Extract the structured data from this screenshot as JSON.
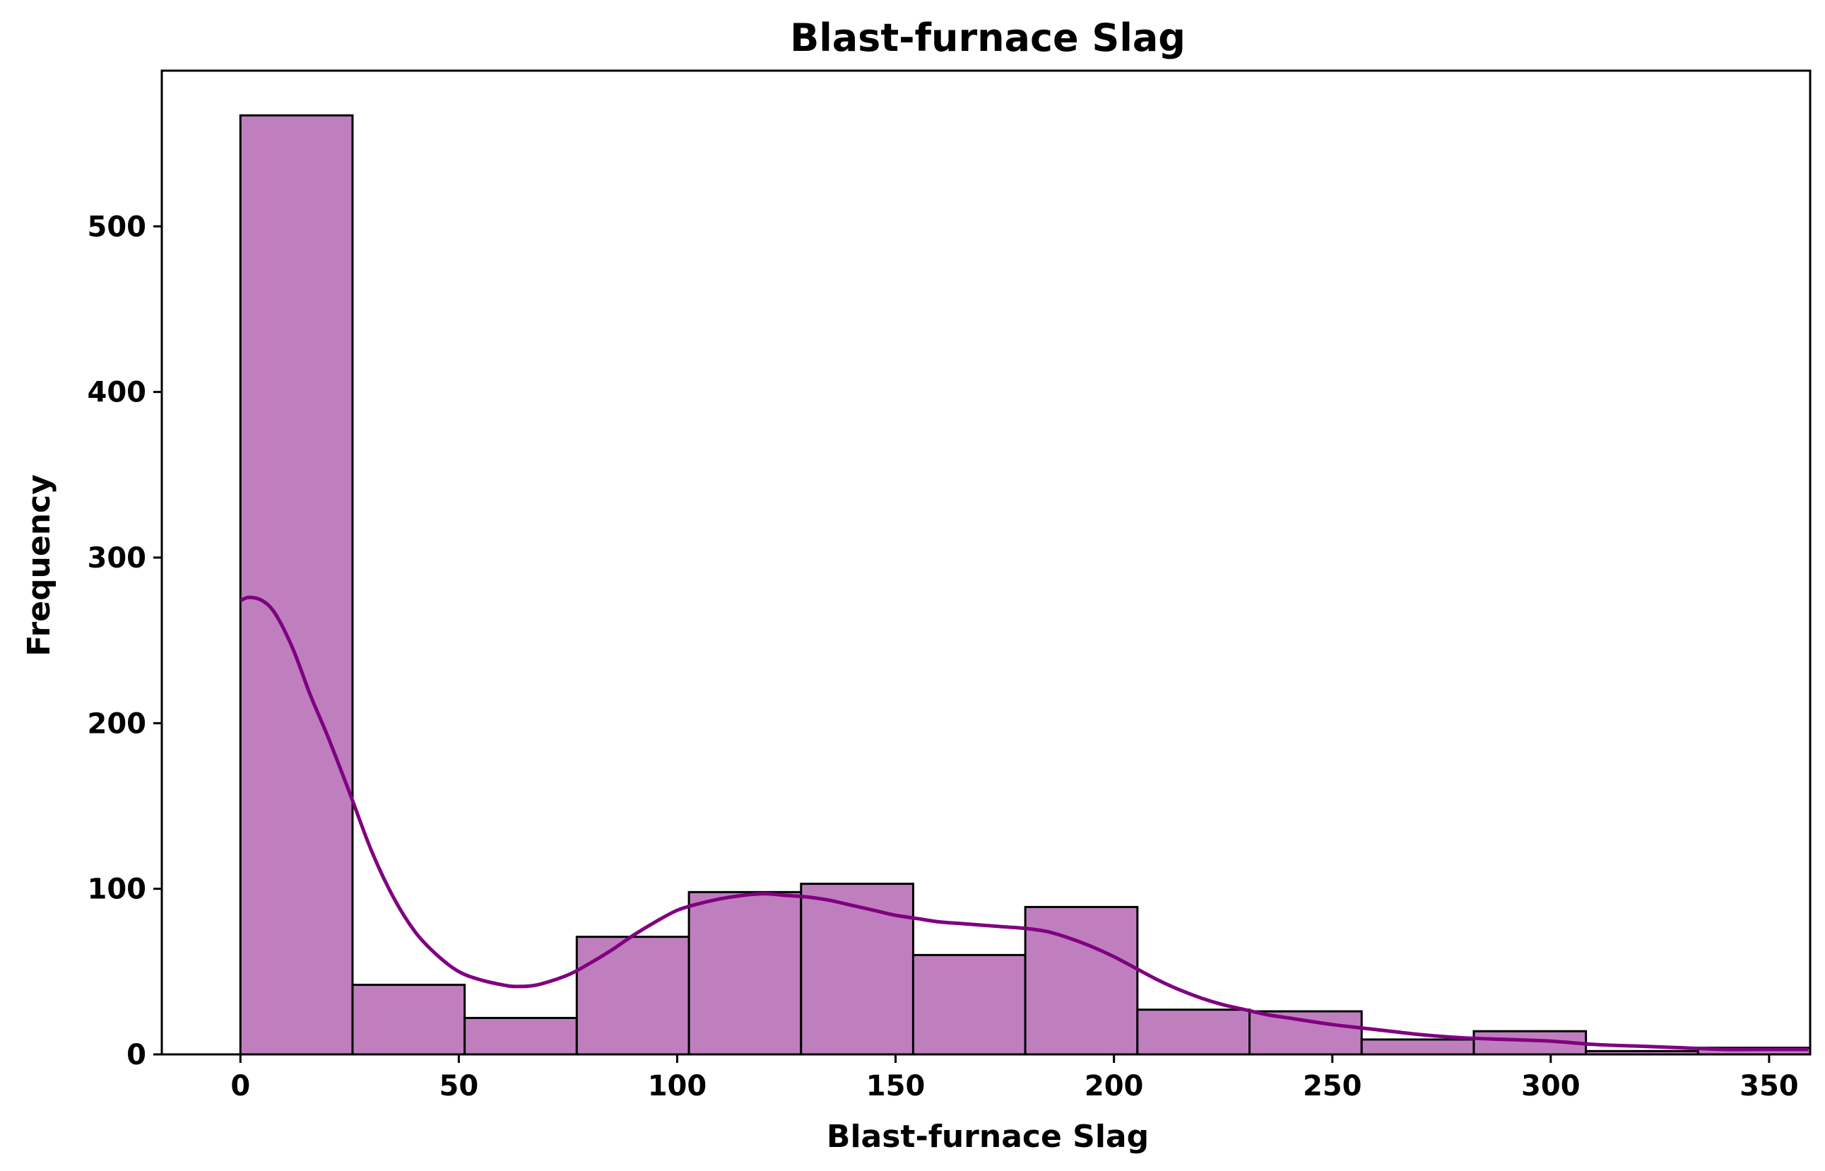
{
  "chart_data": {
    "type": "bar",
    "title": "Blast-furnace Slag",
    "xlabel": "Blast-furnace Slag",
    "ylabel": "Frequency",
    "xlim": [
      -18,
      359.4
    ],
    "ylim": [
      0,
      594
    ],
    "xticks": [
      0,
      50,
      100,
      150,
      200,
      250,
      300,
      350
    ],
    "yticks": [
      0,
      100,
      200,
      300,
      400,
      500
    ],
    "grid": false,
    "bar_color": "#bf7fbf",
    "edge_color": "#000000",
    "kde_color": "#800080",
    "bins": [
      {
        "x0": 0.0,
        "x1": 25.67,
        "count": 567
      },
      {
        "x0": 25.67,
        "x1": 51.34,
        "count": 42
      },
      {
        "x0": 51.34,
        "x1": 77.01,
        "count": 22
      },
      {
        "x0": 77.01,
        "x1": 102.69,
        "count": 71
      },
      {
        "x0": 102.69,
        "x1": 128.36,
        "count": 98
      },
      {
        "x0": 128.36,
        "x1": 154.03,
        "count": 103
      },
      {
        "x0": 154.03,
        "x1": 179.7,
        "count": 60
      },
      {
        "x0": 179.7,
        "x1": 205.37,
        "count": 89
      },
      {
        "x0": 205.37,
        "x1": 231.04,
        "count": 27
      },
      {
        "x0": 231.04,
        "x1": 256.71,
        "count": 26
      },
      {
        "x0": 256.71,
        "x1": 282.39,
        "count": 9
      },
      {
        "x0": 282.39,
        "x1": 308.06,
        "count": 14
      },
      {
        "x0": 308.06,
        "x1": 333.73,
        "count": 2
      },
      {
        "x0": 333.73,
        "x1": 359.4,
        "count": 4
      }
    ],
    "kde": {
      "x": [
        0,
        2,
        5,
        8,
        12,
        16,
        20,
        25,
        30,
        35,
        40,
        45,
        50,
        55,
        60,
        63,
        68,
        75,
        80,
        85,
        90,
        95,
        100,
        105,
        110,
        115,
        120,
        125,
        130,
        135,
        140,
        145,
        150,
        155,
        160,
        165,
        170,
        175,
        180,
        185,
        190,
        195,
        200,
        205,
        210,
        215,
        220,
        225,
        230,
        235,
        240,
        250,
        260,
        270,
        280,
        290,
        300,
        310,
        320,
        330,
        340,
        350,
        359
      ],
      "y": [
        274,
        276,
        274,
        266,
        245,
        217,
        192,
        158,
        123,
        95,
        74,
        60,
        50,
        45,
        42,
        41,
        42,
        48,
        55,
        63,
        72,
        80,
        87,
        91,
        94,
        96,
        97,
        96,
        95,
        93,
        90,
        87,
        84,
        82,
        80,
        79,
        78,
        77,
        76,
        74,
        70,
        65,
        59,
        52,
        45,
        39,
        34,
        30,
        27,
        24,
        22,
        18,
        15,
        12,
        10,
        9,
        8,
        6,
        5,
        4,
        3,
        3,
        3
      ]
    }
  }
}
